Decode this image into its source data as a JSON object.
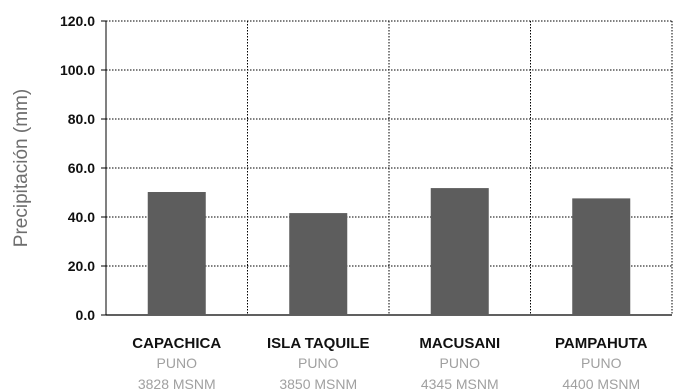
{
  "chart_data": {
    "type": "bar",
    "ylabel": "Precipitación (mm)",
    "ylim": [
      0,
      120
    ],
    "yticks": [
      "0.0",
      "20.0",
      "40.0",
      "60.0",
      "80.0",
      "100.0",
      "120.0"
    ],
    "grid": true,
    "categories": [
      {
        "name": "CAPACHICA",
        "region": "PUNO",
        "altitude": "3828 MSNM"
      },
      {
        "name": "ISLA TAQUILE",
        "region": "PUNO",
        "altitude": "3850 MSNM"
      },
      {
        "name": "MACUSANI",
        "region": "PUNO",
        "altitude": "4345 MSNM"
      },
      {
        "name": "PAMPAHUTA",
        "region": "PUNO",
        "altitude": "4400 MSNM"
      }
    ],
    "values": [
      50.2,
      41.6,
      51.8,
      47.6
    ],
    "bar_color": "#5d5d5d"
  }
}
